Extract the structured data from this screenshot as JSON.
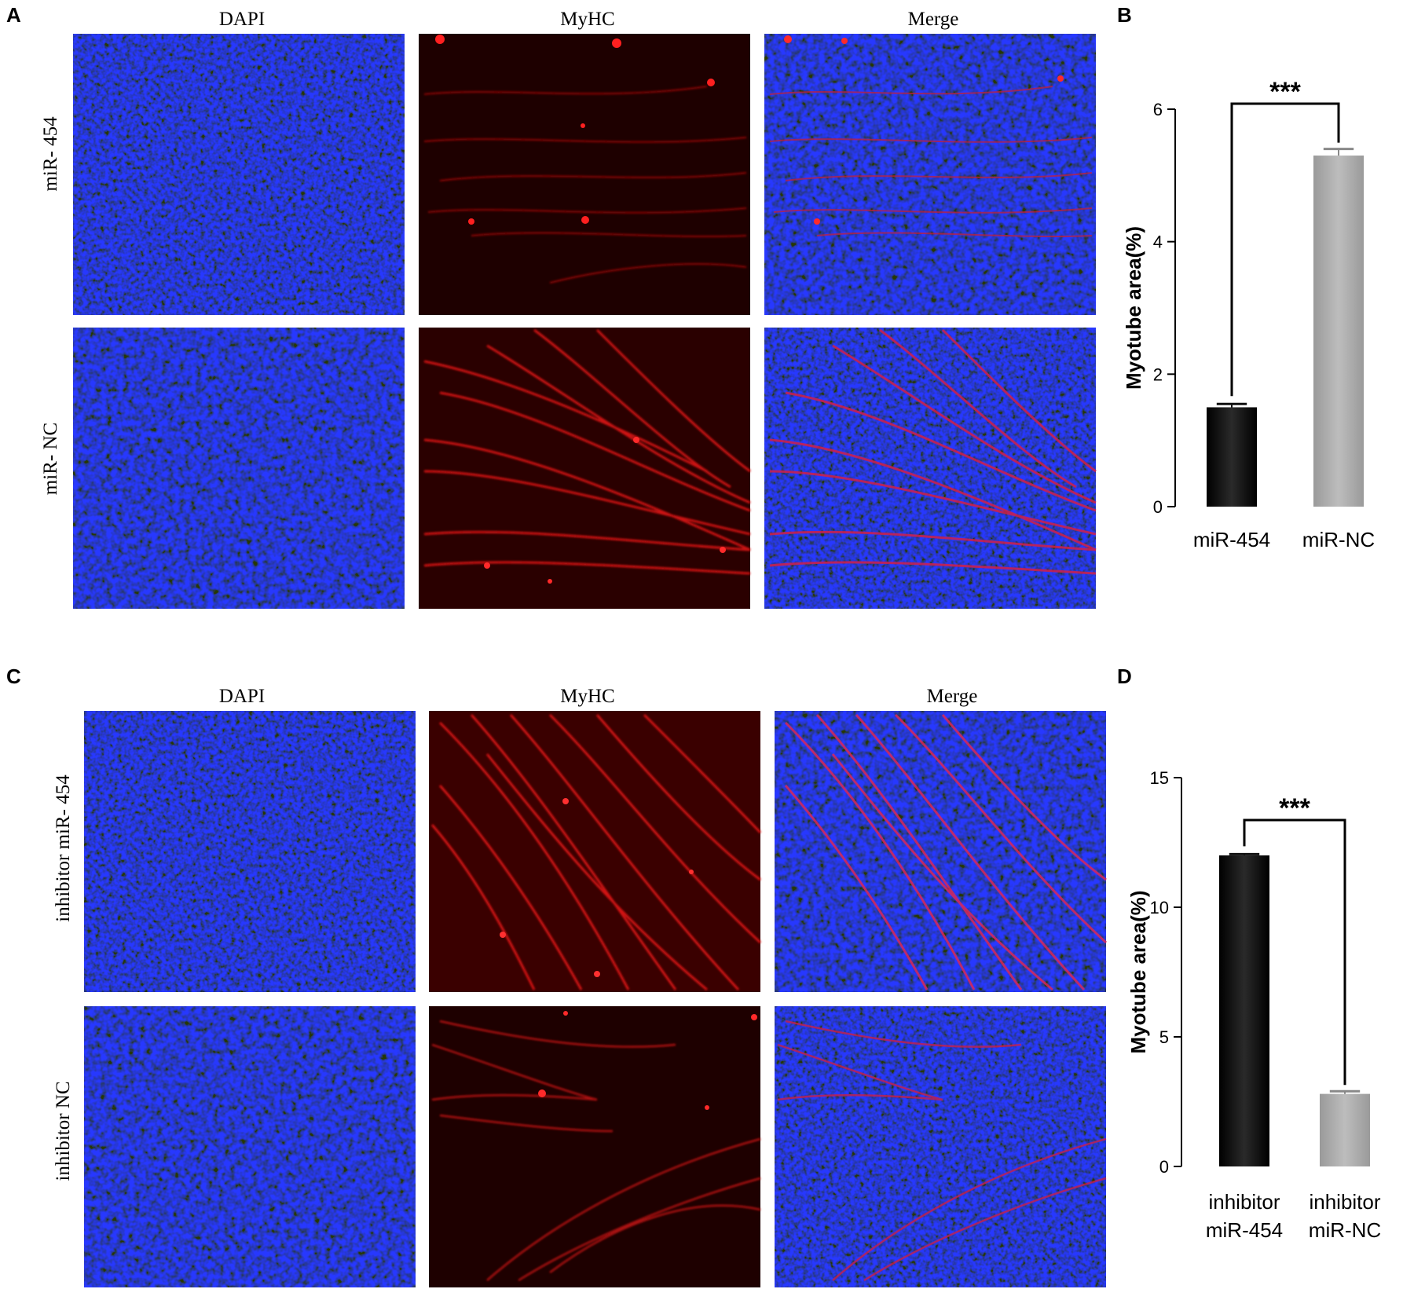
{
  "panels": {
    "A": {
      "letter": "A",
      "columns": [
        "DAPI",
        "MyHC",
        "Merge"
      ],
      "rows": [
        "miR- 454",
        "miR- NC"
      ]
    },
    "C": {
      "letter": "C",
      "columns": [
        "DAPI",
        "MyHC",
        "Merge"
      ],
      "rows": [
        "inhibitor  miR- 454",
        "inhibitor  NC"
      ]
    },
    "B": {
      "letter": "B"
    },
    "D": {
      "letter": "D"
    }
  },
  "colors": {
    "dapi": "#0a0f6e",
    "myhc_bg": "#2a0000",
    "myhc_fiber": "#e01010",
    "bar_dark": "#1a1a1a",
    "bar_light": "#a9a9a9"
  },
  "chart_data": [
    {
      "panel": "B",
      "type": "bar",
      "categories": [
        "miR-454",
        "miR-NC"
      ],
      "values": [
        1.5,
        5.3
      ],
      "errors": [
        0.05,
        0.1
      ],
      "colors": [
        "#1a1a1a",
        "#a9a9a9"
      ],
      "ylabel": "Myotube area(%)",
      "ylim": [
        0,
        6
      ],
      "yticks": [
        "0",
        "2",
        "4",
        "6"
      ],
      "significance": "***"
    },
    {
      "panel": "D",
      "type": "bar",
      "categories": [
        [
          "inhibitor",
          "miR-454"
        ],
        [
          "inhibitor",
          "miR-NC"
        ]
      ],
      "values": [
        12.0,
        2.8
      ],
      "errors": [
        0.05,
        0.1
      ],
      "colors": [
        "#1a1a1a",
        "#a9a9a9"
      ],
      "ylabel": "Myotube area(%)",
      "ylim": [
        0,
        15
      ],
      "yticks": [
        "0",
        "5",
        "10",
        "15"
      ],
      "significance": "***"
    }
  ]
}
